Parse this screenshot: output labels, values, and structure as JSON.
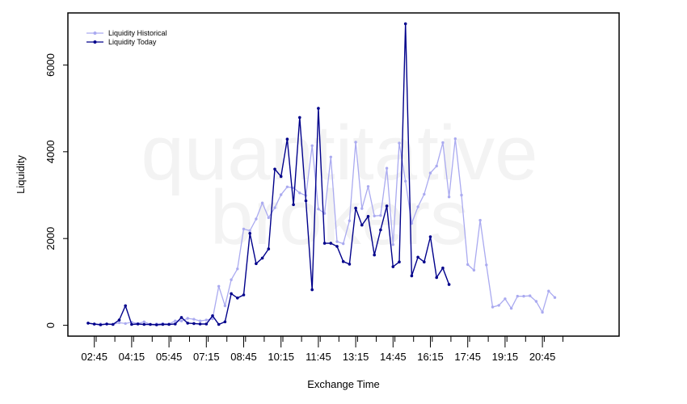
{
  "watermark": {
    "line1": "quantitative",
    "line2": "brokers"
  },
  "chart_data": {
    "type": "line",
    "xlabel": "Exchange Time",
    "ylabel": "Liquidity",
    "ylim": [
      -250,
      7200
    ],
    "yticks": [
      0,
      2000,
      4000,
      6000
    ],
    "xtick_labels": [
      "02:45",
      "04:15",
      "05:45",
      "07:15",
      "08:45",
      "10:15",
      "11:45",
      "13:15",
      "14:45",
      "16:15",
      "17:45",
      "19:15",
      "20:45"
    ],
    "legend_position": "top-left",
    "grid": false,
    "series": [
      {
        "name": "Liquidity Historical",
        "color": "#aaaaf0",
        "values": [
          50,
          20,
          30,
          30,
          20,
          60,
          40,
          70,
          40,
          80,
          20,
          30,
          40,
          30,
          100,
          100,
          160,
          140,
          100,
          120,
          150,
          900,
          450,
          1050,
          1300,
          2220,
          2180,
          2450,
          2820,
          2480,
          2710,
          3010,
          3190,
          3170,
          3050,
          2990,
          4140,
          2680,
          2580,
          3880,
          1930,
          1880,
          2410,
          4220,
          2690,
          3200,
          2520,
          2530,
          3620,
          1860,
          4200,
          3320,
          2350,
          2730,
          3020,
          3510,
          3670,
          4210,
          2960,
          4300,
          3000,
          1400,
          1270,
          2420,
          1390,
          420,
          460,
          610,
          390,
          670,
          670,
          680,
          550,
          300,
          790,
          640
        ]
      },
      {
        "name": "Liquidity Today",
        "color": "#00008b",
        "values": [
          50,
          30,
          10,
          30,
          20,
          120,
          450,
          20,
          30,
          20,
          20,
          10,
          20,
          20,
          30,
          180,
          50,
          40,
          30,
          30,
          220,
          20,
          80,
          730,
          630,
          700,
          2120,
          1420,
          1550,
          1760,
          3600,
          3430,
          4290,
          2780,
          4790,
          2870,
          820,
          5000,
          1890,
          1890,
          1820,
          1470,
          1410,
          2700,
          2310,
          2510,
          1620,
          2200,
          2750,
          1350,
          1460,
          6950,
          1140,
          1570,
          1460,
          2040,
          1100,
          1320,
          940
        ]
      }
    ]
  }
}
